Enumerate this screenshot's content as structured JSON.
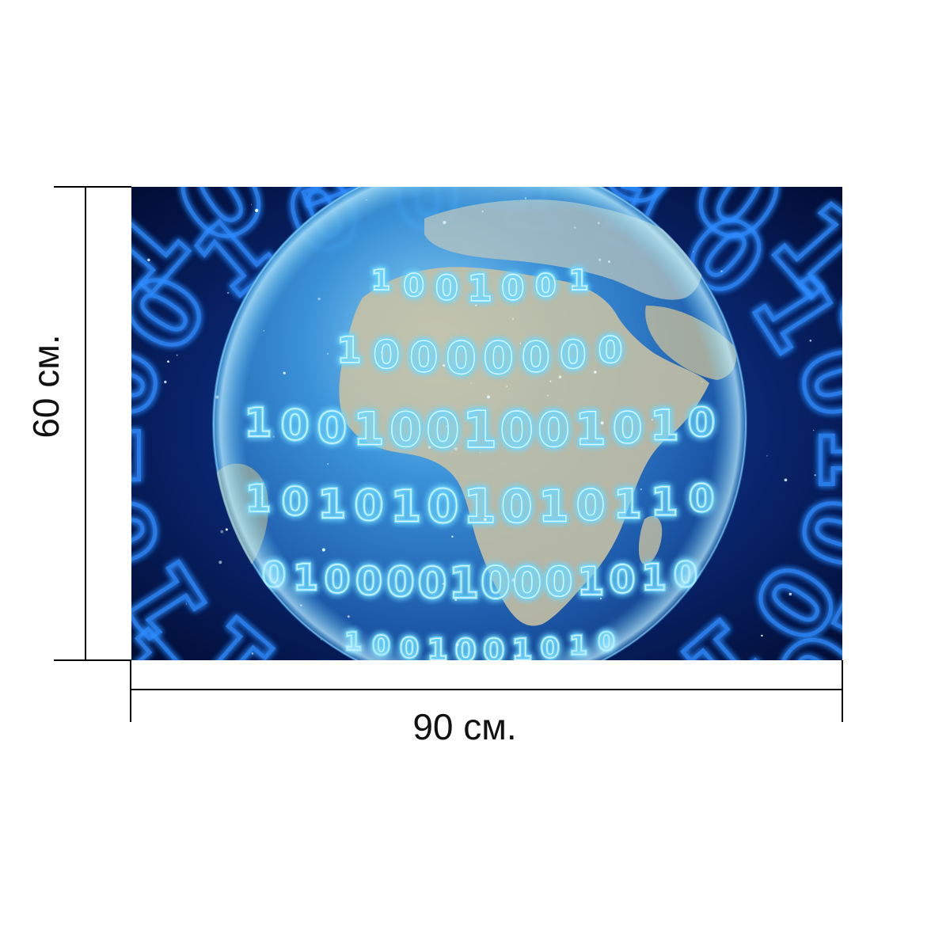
{
  "product": {
    "image": {
      "subject": "globe-with-binary-code",
      "colors": {
        "space": "#010a2c",
        "glow": "#2f8cff",
        "digit_glow": "#6fd8ff",
        "digit_core": "#e8fbff",
        "land": "#c8c2a4",
        "ocean": "#2b6fb0"
      }
    },
    "dimensions": {
      "height_label": "60 см.",
      "width_label": "90 см.",
      "line_color": "#000000"
    }
  }
}
